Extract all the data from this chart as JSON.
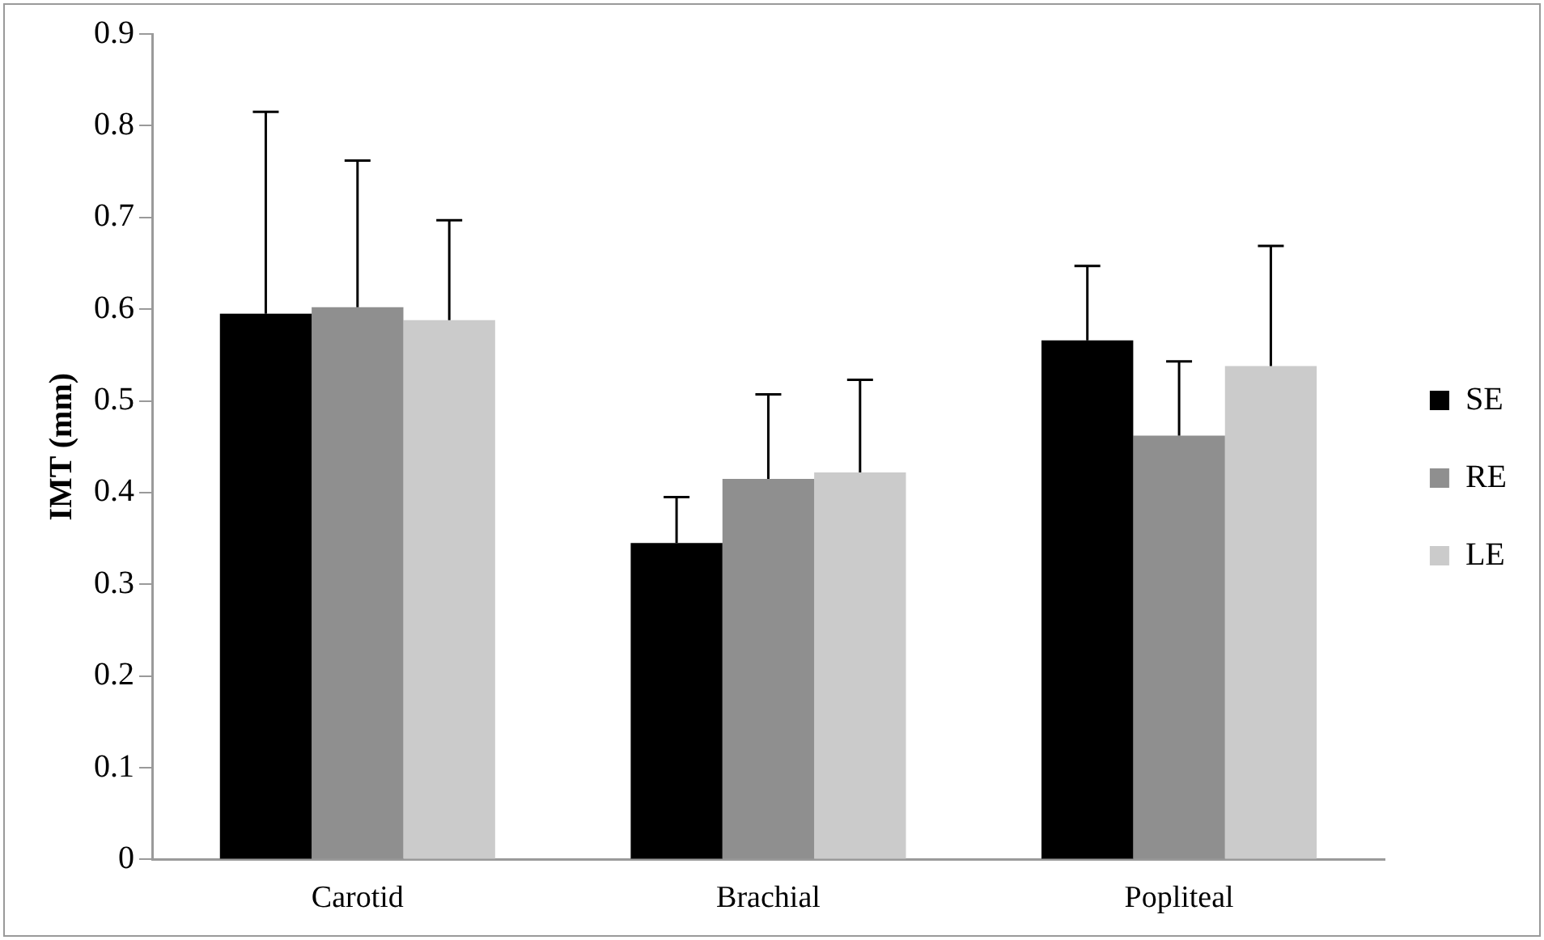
{
  "chart_data": {
    "type": "bar",
    "ylabel": "IMT (mm)",
    "categories": [
      "Carotid",
      "Brachial",
      "Popliteal"
    ],
    "series": [
      {
        "name": "SE",
        "color": "#000000",
        "values": [
          0.595,
          0.345,
          0.566
        ],
        "errors": [
          [
            0.595,
            0.815
          ],
          [
            0.345,
            0.395
          ],
          [
            0.566,
            0.647
          ]
        ]
      },
      {
        "name": "RE",
        "color": "#8f8f8f",
        "values": [
          0.602,
          0.415,
          0.462
        ],
        "errors": [
          [
            0.602,
            0.762
          ],
          [
            0.415,
            0.507
          ],
          [
            0.462,
            0.543
          ]
        ]
      },
      {
        "name": "LE",
        "color": "#cbcbcb",
        "values": [
          0.588,
          0.422,
          0.538
        ],
        "errors": [
          [
            0.588,
            0.697
          ],
          [
            0.422,
            0.523
          ],
          [
            0.538,
            0.669
          ]
        ]
      }
    ],
    "ylim": [
      0,
      0.9
    ],
    "yticks": [
      0,
      0.1,
      0.2,
      0.3,
      0.4,
      0.5,
      0.6,
      0.7,
      0.8,
      0.9
    ],
    "grid": false,
    "legend": "right"
  }
}
